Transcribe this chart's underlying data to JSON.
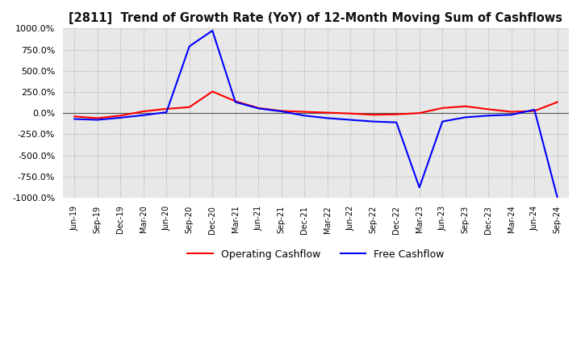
{
  "title": "[2811]  Trend of Growth Rate (YoY) of 12-Month Moving Sum of Cashflows",
  "ylim": [
    -1000,
    1000
  ],
  "yticks": [
    1000.0,
    750.0,
    500.0,
    250.0,
    0.0,
    -250.0,
    -500.0,
    -750.0,
    -1000.0
  ],
  "legend": [
    "Operating Cashflow",
    "Free Cashflow"
  ],
  "legend_colors": [
    "#ff0000",
    "#0000ff"
  ],
  "background_color": "#ffffff",
  "plot_bg_color": "#e8e8e8",
  "grid_color": "#aaaaaa",
  "dates": [
    "Jun-19",
    "Sep-19",
    "Dec-19",
    "Mar-20",
    "Jun-20",
    "Sep-20",
    "Dec-20",
    "Mar-21",
    "Jun-21",
    "Sep-21",
    "Dec-21",
    "Mar-22",
    "Jun-22",
    "Sep-22",
    "Dec-22",
    "Mar-23",
    "Jun-23",
    "Sep-23",
    "Dec-23",
    "Mar-24",
    "Jun-24",
    "Sep-24"
  ],
  "operating_cashflow": [
    -40,
    -60,
    -30,
    20,
    50,
    70,
    255,
    140,
    60,
    25,
    15,
    5,
    -5,
    -20,
    -15,
    0,
    60,
    80,
    45,
    15,
    25,
    130
  ],
  "free_cashflow": [
    -70,
    -80,
    -55,
    -25,
    10,
    790,
    975,
    130,
    55,
    20,
    -30,
    -60,
    -80,
    -100,
    -110,
    -880,
    -100,
    -50,
    -30,
    -20,
    40,
    -1000
  ]
}
